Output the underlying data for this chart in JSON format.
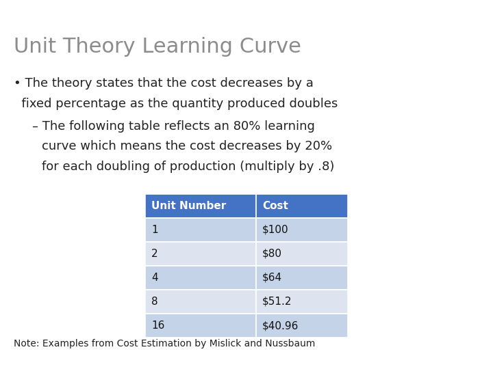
{
  "title": "Unit Theory Learning Curve",
  "title_color": "#8c8c8c",
  "title_fontsize": 22,
  "table_headers": [
    "Unit Number",
    "Cost"
  ],
  "table_data": [
    [
      "1",
      "$100"
    ],
    [
      "2",
      "$80"
    ],
    [
      "4",
      "$64"
    ],
    [
      "8",
      "$51.2"
    ],
    [
      "16",
      "$40.96"
    ]
  ],
  "header_bg_color": "#4472C4",
  "header_text_color": "#ffffff",
  "row_colors": [
    "#c5d3e8",
    "#dde4f0",
    "#c5d3e8",
    "#dde4f0",
    "#c5d3e8"
  ],
  "table_text_color": "#111111",
  "body_text_color": "#222222",
  "body_fontsize": 13,
  "sub_fontsize": 13,
  "note_text": "Note: Examples from Cost Estimation by Mislick and Nussbaum",
  "note_fontsize": 10,
  "bg_color": "#ffffff"
}
